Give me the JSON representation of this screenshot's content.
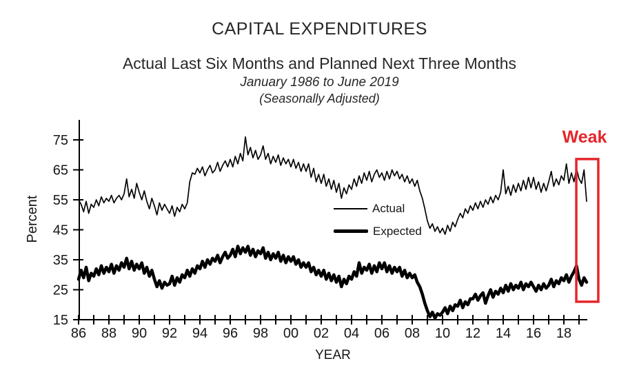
{
  "header": {
    "title": "CAPITAL EXPENDITURES",
    "subtitle": "Actual Last Six Months and Planned Next Three Months",
    "date_range": "January 1986 to June 2019",
    "adjustment_note": "(Seasonally Adjusted)"
  },
  "chart_data": {
    "type": "line",
    "title": "CAPITAL EXPENDITURES",
    "subtitle": "Actual Last Six Months and Planned Next Three Months",
    "xlabel": "YEAR",
    "ylabel": "Percent",
    "xlim": [
      1986,
      2019.5
    ],
    "ylim": [
      15,
      75
    ],
    "y_ticks": [
      15,
      25,
      35,
      45,
      55,
      65,
      75
    ],
    "x_tick_labels": [
      "86",
      "88",
      "90",
      "92",
      "94",
      "96",
      "98",
      "00",
      "02",
      "04",
      "06",
      "08",
      "10",
      "12",
      "14",
      "16",
      "18"
    ],
    "x_label_step_years": 2,
    "x_minor_tick_step_years": 1,
    "grid": false,
    "legend": {
      "position": "center-right",
      "entries": [
        "Actual",
        "Expected"
      ]
    },
    "x_start": 1986.0,
    "x_step": 0.1666667,
    "series": [
      {
        "name": "Actual",
        "style": "thin",
        "color": "#000000",
        "stroke_width": 1.7,
        "values": [
          55,
          53.5,
          51,
          54.5,
          50.5,
          53.5,
          52.5,
          55,
          53,
          56,
          54,
          55.5,
          54.5,
          56.5,
          54,
          55.5,
          56.5,
          55,
          57,
          62,
          56,
          58.5,
          55.5,
          60.5,
          57.5,
          55,
          58,
          54.5,
          52,
          55.5,
          53,
          50,
          54,
          51.5,
          53.5,
          52,
          50.5,
          53,
          49.5,
          52.5,
          51,
          53.5,
          52,
          54,
          61,
          64,
          63.5,
          65.5,
          64,
          66,
          63,
          65,
          66.5,
          64,
          65,
          67.5,
          64.5,
          66.5,
          68,
          66,
          68.5,
          66,
          69.5,
          67,
          70.5,
          68,
          76,
          70,
          72.5,
          69,
          71.5,
          68.5,
          70,
          73,
          68.5,
          70.5,
          67,
          69.5,
          67.5,
          70,
          66.5,
          69,
          67,
          68.5,
          66,
          68.5,
          65.5,
          67.5,
          64.5,
          67,
          64.5,
          67,
          62.5,
          65.5,
          61,
          63.5,
          60.5,
          63.5,
          59.5,
          62,
          58.5,
          61.5,
          57.5,
          60.5,
          55.5,
          59,
          57,
          60,
          58.5,
          62,
          59.5,
          63,
          60.5,
          64,
          61.5,
          64.5,
          61,
          63.5,
          65,
          62.5,
          64,
          61.5,
          64.5,
          62,
          65,
          63,
          64.5,
          62,
          63.5,
          61,
          63,
          60.5,
          62,
          59.5,
          61.5,
          58,
          55.5,
          52,
          48,
          45.5,
          47,
          44.5,
          46,
          44,
          45.5,
          43.5,
          46.5,
          44.5,
          47.5,
          46,
          48.5,
          50.5,
          49,
          52,
          50.5,
          53,
          51.5,
          54,
          52,
          54.5,
          52.5,
          55,
          53.5,
          56,
          54,
          56.5,
          55,
          57.5,
          65,
          57,
          59.5,
          56.5,
          60,
          57.5,
          60.5,
          58,
          61.5,
          58.5,
          62.5,
          59,
          62.5,
          58.5,
          61,
          57.5,
          60.5,
          58,
          61,
          64.5,
          59.5,
          62,
          60,
          63,
          61.5,
          67,
          60.5,
          64,
          61,
          65.5,
          62,
          60.5,
          65,
          54.5
        ]
      },
      {
        "name": "Expected",
        "style": "thick",
        "color": "#000000",
        "stroke_width": 4.5,
        "values": [
          28.5,
          31.5,
          29,
          32.5,
          28,
          30.5,
          29.5,
          32,
          30,
          33,
          30.5,
          32.5,
          31,
          33.5,
          30.5,
          33,
          31.5,
          34,
          32.5,
          35.5,
          32,
          34.5,
          31.5,
          33.5,
          32,
          34,
          30.5,
          32.5,
          29.5,
          31.5,
          28.5,
          26,
          28,
          25.5,
          27.5,
          26.5,
          27,
          29.5,
          26.5,
          29,
          27.5,
          30,
          29,
          31.5,
          29.5,
          32,
          30.5,
          33,
          32,
          34.5,
          32.5,
          35,
          33.5,
          35.5,
          34.5,
          36.5,
          34,
          36,
          37.5,
          35.5,
          36.5,
          38.5,
          36,
          39.5,
          37,
          39,
          37.5,
          39.5,
          36.5,
          38.5,
          36,
          38,
          37,
          39,
          35.5,
          37.5,
          35,
          37,
          35.5,
          37.5,
          34.5,
          36.5,
          34,
          36,
          34.5,
          36,
          33.5,
          35,
          32.5,
          34,
          32.5,
          34,
          31,
          32.5,
          30,
          31.5,
          29.5,
          31.5,
          28.5,
          30.5,
          28,
          30,
          27.5,
          29.5,
          26,
          28.5,
          27,
          29.5,
          28.5,
          31,
          29.5,
          34,
          30.5,
          32.5,
          31.5,
          33.5,
          30.5,
          33,
          31,
          34,
          32,
          34,
          31,
          33,
          30.5,
          32.5,
          31,
          32.5,
          29.5,
          31.5,
          29,
          30.5,
          29,
          30,
          27.5,
          26,
          23.5,
          20.5,
          18,
          16,
          17.5,
          15.5,
          17,
          16.5,
          17.5,
          19,
          17,
          19.5,
          18,
          20,
          19.5,
          21.5,
          19,
          21,
          20,
          22,
          22,
          23.5,
          21.5,
          23,
          24,
          20.5,
          23,
          25,
          22.5,
          24.5,
          23.5,
          25.5,
          24,
          26.5,
          24.5,
          27,
          25,
          26.5,
          25.5,
          27.5,
          25,
          27,
          26,
          27.5,
          26,
          24.5,
          26.5,
          25,
          27,
          25.5,
          26.5,
          28.5,
          26,
          28,
          27,
          29,
          28,
          30,
          27.5,
          29.5,
          31,
          33,
          28.5,
          26.5,
          29,
          27.5
        ]
      }
    ],
    "annotation": {
      "label": "Weak",
      "color": "#e5252b",
      "box": {
        "x_from": 2018.82,
        "x_to": 2020.27,
        "y_from": 21.0,
        "y_to": 68.6
      }
    }
  }
}
